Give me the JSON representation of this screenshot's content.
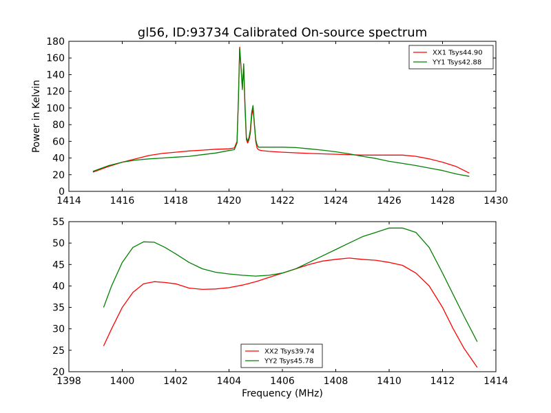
{
  "chart_data": [
    {
      "type": "line",
      "title": "gl56, ID:93734 Calibrated On-source spectrum",
      "xlabel": "",
      "ylabel": "Power in Kelvin",
      "xlim": [
        1414,
        1430
      ],
      "ylim": [
        0,
        180
      ],
      "xticks": [
        1414,
        1416,
        1418,
        1420,
        1422,
        1424,
        1426,
        1428,
        1430
      ],
      "yticks": [
        0,
        20,
        40,
        60,
        80,
        100,
        120,
        140,
        160,
        180
      ],
      "grid": false,
      "legend_position": "upper right",
      "series": [
        {
          "name": "XX1 Tsys44.90",
          "color": "#ff0000",
          "x": [
            1414.9,
            1415.5,
            1416,
            1416.5,
            1417,
            1417.5,
            1418,
            1418.5,
            1419,
            1419.5,
            1420,
            1420.2,
            1420.3,
            1420.35,
            1420.4,
            1420.45,
            1420.5,
            1420.55,
            1420.6,
            1420.65,
            1420.7,
            1420.75,
            1420.8,
            1420.85,
            1420.9,
            1420.95,
            1421.0,
            1421.05,
            1421.1,
            1421.2,
            1421.5,
            1422,
            1423,
            1424,
            1425,
            1426,
            1426.5,
            1427,
            1427.5,
            1428,
            1428.5,
            1429
          ],
          "values": [
            23,
            30,
            35,
            39,
            43,
            45.5,
            47,
            48.5,
            49.5,
            50.5,
            51,
            52,
            60,
            110,
            173,
            150,
            125,
            150,
            100,
            62,
            58,
            62,
            70,
            90,
            99,
            80,
            60,
            52,
            50,
            49,
            48,
            47,
            45.5,
            44.5,
            43.5,
            43.5,
            43.5,
            42,
            39,
            35,
            30,
            22
          ]
        },
        {
          "name": "YY1 Tsys42.88",
          "color": "#008000",
          "x": [
            1414.9,
            1415.5,
            1416,
            1416.5,
            1417,
            1417.5,
            1418,
            1418.5,
            1419,
            1419.5,
            1420,
            1420.2,
            1420.3,
            1420.35,
            1420.4,
            1420.45,
            1420.5,
            1420.55,
            1420.6,
            1420.65,
            1420.7,
            1420.75,
            1420.8,
            1420.85,
            1420.9,
            1420.95,
            1421.0,
            1421.05,
            1421.1,
            1421.2,
            1421.5,
            1422,
            1422.5,
            1423,
            1423.5,
            1424,
            1424.5,
            1425,
            1425.5,
            1426,
            1426.5,
            1427,
            1427.5,
            1428,
            1428.5,
            1429
          ],
          "values": [
            24,
            31,
            35,
            37.5,
            39,
            40,
            41,
            42,
            44,
            46,
            49,
            50,
            58,
            108,
            172,
            148,
            122,
            153,
            105,
            65,
            60,
            65,
            74,
            95,
            103,
            82,
            62,
            56,
            53,
            53,
            53,
            53,
            52.5,
            51,
            49.5,
            47.5,
            45,
            42,
            39.5,
            36,
            33.5,
            31,
            28,
            25,
            21,
            18
          ]
        }
      ]
    },
    {
      "type": "line",
      "title": "",
      "xlabel": "Frequency (MHz)",
      "ylabel": "",
      "xlim": [
        1398,
        1414
      ],
      "ylim": [
        20,
        55
      ],
      "xticks": [
        1398,
        1400,
        1402,
        1404,
        1406,
        1408,
        1410,
        1412,
        1414
      ],
      "yticks": [
        20,
        25,
        30,
        35,
        40,
        45,
        50,
        55
      ],
      "grid": false,
      "legend_position": "lower center",
      "series": [
        {
          "name": "XX2 Tsys39.74",
          "color": "#ff0000",
          "x": [
            1399.3,
            1399.6,
            1400,
            1400.4,
            1400.8,
            1401.2,
            1401.6,
            1402,
            1402.5,
            1403,
            1403.5,
            1404,
            1404.5,
            1405,
            1405.5,
            1406,
            1406.5,
            1407,
            1407.5,
            1408,
            1408.5,
            1409,
            1409.5,
            1410,
            1410.5,
            1411,
            1411.5,
            1412,
            1412.4,
            1412.8,
            1413.3
          ],
          "values": [
            26,
            30,
            35,
            38.5,
            40.5,
            41,
            40.8,
            40.5,
            39.5,
            39.2,
            39.3,
            39.6,
            40.2,
            41,
            42,
            43,
            44,
            45,
            45.8,
            46.2,
            46.5,
            46.2,
            46,
            45.5,
            44.8,
            43,
            40,
            35,
            30,
            25.5,
            21
          ]
        },
        {
          "name": "YY2 Tsys45.78",
          "color": "#008000",
          "x": [
            1399.3,
            1399.6,
            1400,
            1400.4,
            1400.8,
            1401.2,
            1401.6,
            1402,
            1402.5,
            1403,
            1403.5,
            1404,
            1404.5,
            1405,
            1405.5,
            1406,
            1406.5,
            1407,
            1407.5,
            1408,
            1408.5,
            1409,
            1409.5,
            1410,
            1410.5,
            1411,
            1411.5,
            1412,
            1412.4,
            1412.8,
            1413.3
          ],
          "values": [
            35,
            40,
            45.5,
            49,
            50.3,
            50.2,
            49,
            47.5,
            45.5,
            44,
            43.2,
            42.8,
            42.5,
            42.3,
            42.5,
            43,
            44,
            45.5,
            47,
            48.5,
            50,
            51.5,
            52.5,
            53.5,
            53.5,
            52.5,
            49,
            43,
            38,
            33,
            27
          ]
        }
      ]
    }
  ]
}
